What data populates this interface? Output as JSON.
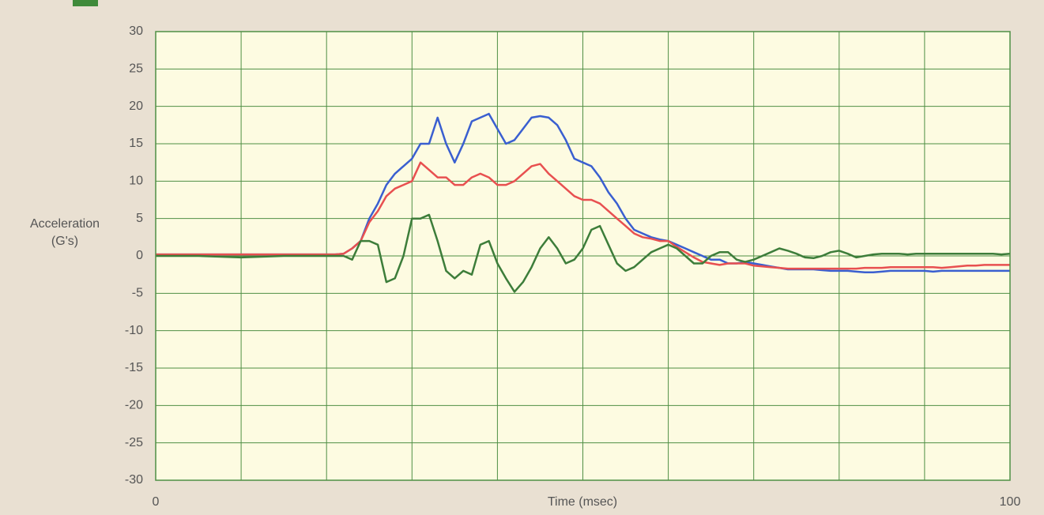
{
  "chart_data": {
    "type": "line",
    "xlabel": "Time (msec)",
    "ylabel": [
      "Acceleration",
      "(G's)"
    ],
    "xlim": [
      0,
      100
    ],
    "ylim": [
      -30,
      30
    ],
    "xticks": [
      0,
      100
    ],
    "xgrid": [
      0,
      10,
      20,
      30,
      40,
      50,
      60,
      70,
      80,
      90,
      100
    ],
    "yticks": [
      30,
      25,
      20,
      15,
      10,
      5,
      0,
      -5,
      -10,
      -15,
      -20,
      -25,
      -30
    ],
    "grid": true,
    "x": [
      0,
      5,
      10,
      15,
      20,
      21,
      22,
      23,
      24,
      25,
      26,
      27,
      28,
      29,
      30,
      31,
      32,
      33,
      34,
      35,
      36,
      37,
      38,
      39,
      40,
      41,
      42,
      43,
      44,
      45,
      46,
      47,
      48,
      49,
      50,
      51,
      52,
      53,
      54,
      55,
      56,
      57,
      58,
      59,
      60,
      61,
      62,
      63,
      64,
      65,
      66,
      67,
      68,
      69,
      70,
      71,
      72,
      73,
      74,
      75,
      76,
      77,
      78,
      79,
      80,
      81,
      82,
      83,
      84,
      85,
      86,
      87,
      88,
      89,
      90,
      91,
      92,
      93,
      94,
      95,
      96,
      97,
      98,
      99,
      100
    ],
    "series": [
      {
        "color": "#3a5fd0",
        "values": [
          0.2,
          0.2,
          0.2,
          0.2,
          0.2,
          0.2,
          0.3,
          1,
          2,
          5,
          7,
          9.5,
          11,
          12,
          13,
          15,
          15,
          18.5,
          15,
          12.5,
          15,
          18,
          18.5,
          19,
          17,
          15,
          15.5,
          17,
          18.5,
          18.7,
          18.5,
          17.5,
          15.5,
          13,
          12.5,
          12,
          10.5,
          8.5,
          7,
          5,
          3.5,
          3,
          2.5,
          2.2,
          2,
          1.5,
          1,
          0.5,
          0,
          -0.5,
          -0.5,
          -1,
          -1,
          -0.8,
          -1,
          -1.2,
          -1.4,
          -1.6,
          -1.8,
          -1.8,
          -1.8,
          -1.8,
          -1.9,
          -2,
          -2,
          -2,
          -2.1,
          -2.2,
          -2.2,
          -2.1,
          -2,
          -2,
          -2,
          -2,
          -2,
          -2.1,
          -2,
          -2,
          -2,
          -2,
          -2,
          -2,
          -2,
          -2,
          -2
        ]
      },
      {
        "color": "#e85050",
        "values": [
          0.2,
          0.2,
          0.2,
          0.2,
          0.2,
          0.2,
          0.3,
          1,
          2,
          4.5,
          6,
          8,
          9,
          9.5,
          10,
          12.5,
          11.5,
          10.5,
          10.5,
          9.5,
          9.5,
          10.5,
          11,
          10.5,
          9.5,
          9.5,
          10,
          11,
          12,
          12.3,
          11,
          10,
          9,
          8,
          7.5,
          7.5,
          7,
          6,
          5,
          4,
          3,
          2.5,
          2.3,
          2,
          2,
          1.2,
          0.5,
          -0.2,
          -0.8,
          -1,
          -1.2,
          -1,
          -1,
          -1,
          -1.3,
          -1.4,
          -1.5,
          -1.6,
          -1.7,
          -1.7,
          -1.7,
          -1.7,
          -1.7,
          -1.7,
          -1.7,
          -1.7,
          -1.7,
          -1.6,
          -1.6,
          -1.6,
          -1.5,
          -1.5,
          -1.5,
          -1.5,
          -1.5,
          -1.5,
          -1.6,
          -1.5,
          -1.4,
          -1.3,
          -1.3,
          -1.2,
          -1.2,
          -1.2,
          -1.2
        ]
      },
      {
        "color": "#3d7d3a",
        "values": [
          0,
          0,
          -0.2,
          0,
          0,
          0,
          0,
          -0.5,
          2,
          2,
          1.5,
          -3.5,
          -3,
          0,
          5,
          5,
          5.5,
          2,
          -2,
          -3,
          -2,
          -2.5,
          1.5,
          2,
          -1,
          -3,
          -4.8,
          -3.5,
          -1.5,
          1,
          2.5,
          1,
          -1,
          -0.5,
          1,
          3.5,
          4,
          1.5,
          -1,
          -2,
          -1.5,
          -0.5,
          0.5,
          1,
          1.5,
          1,
          0,
          -1,
          -1,
          0,
          0.5,
          0.5,
          -0.5,
          -0.8,
          -0.5,
          0,
          0.5,
          1,
          0.7,
          0.3,
          -0.2,
          -0.3,
          0,
          0.5,
          0.7,
          0.3,
          -0.2,
          0,
          0.2,
          0.3,
          0.3,
          0.3,
          0.2,
          0.3,
          0.3,
          0.3,
          0.3,
          0.3,
          0.3,
          0.3,
          0.3,
          0.3,
          0.3,
          0.2,
          0.3
        ]
      }
    ]
  }
}
